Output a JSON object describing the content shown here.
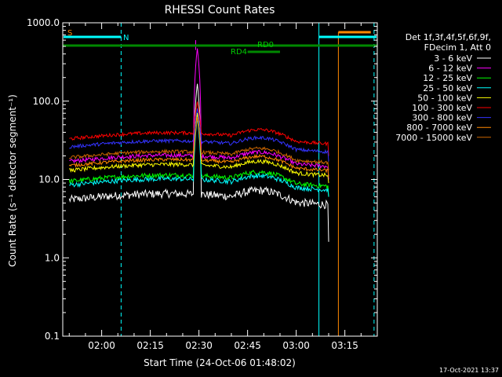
{
  "chart_data": {
    "type": "line",
    "title": "RHESSI Count Rates",
    "xlabel": "Start Time (24-Oct-06 01:48:02)",
    "ylabel": "Count Rate (s⁻¹ detector segment⁻¹)",
    "yscale": "log",
    "ylim": [
      0.1,
      1000
    ],
    "xlim": [
      "01:48",
      "03:25"
    ],
    "x_ticks": [
      "02:00",
      "02:15",
      "02:30",
      "02:45",
      "03:00",
      "03:15"
    ],
    "y_ticks": [
      "0.1",
      "1.0",
      "10.0",
      "100.0",
      "1000.0"
    ],
    "footer": "17-Oct-2021 13:37",
    "legend": {
      "placement": "right",
      "header_line1": "Det 1f,3f,4f,5f,6f,9f,",
      "header_line2": "FDecim 1, Att 0"
    },
    "series": [
      {
        "name": "3 - 6 keV",
        "color": "#ffffff",
        "base": 5.5,
        "noise": 0.12,
        "peak": 160,
        "end_drop": 1.6
      },
      {
        "name": "6 - 12 keV",
        "color": "#ff00ff",
        "base": 17,
        "noise": 0.06,
        "peak": 450,
        "end_drop": 10
      },
      {
        "name": "12 - 25 keV",
        "color": "#00ff00",
        "base": 9.5,
        "noise": 0.07,
        "peak": 60,
        "end_drop": 6
      },
      {
        "name": "25 - 50 keV",
        "color": "#00ffff",
        "base": 8.5,
        "noise": 0.07,
        "peak": 50,
        "end_drop": 6
      },
      {
        "name": "50 - 100 keV",
        "color": "#ffff00",
        "base": 13,
        "noise": 0.06,
        "peak": 55,
        "end_drop": 9
      },
      {
        "name": "100 - 300 keV",
        "color": "#ff0000",
        "base": 33,
        "noise": 0.05,
        "peak": 60,
        "end_drop": 20
      },
      {
        "name": "300 - 800 keV",
        "color": "#3333ff",
        "base": 26,
        "noise": 0.05,
        "peak": 50,
        "end_drop": 17
      },
      {
        "name": "800 - 7000 keV",
        "color": "#ff8800",
        "base": 15,
        "noise": 0.05,
        "peak": 45,
        "end_drop": 11
      },
      {
        "name": "7000 - 15000 keV",
        "color": "#cc6600",
        "base": 19,
        "noise": 0.05,
        "peak": 40,
        "end_drop": 13
      }
    ],
    "annotations": {
      "S_label": "S",
      "N_label": "N",
      "RD0_label": "RD0",
      "RD4_label": "RD4"
    },
    "markers": {
      "cyan_solid_times": [
        "01:48",
        "03:07"
      ],
      "cyan_dashed_times": [
        "02:06",
        "03:24"
      ],
      "orange_line_time": "03:13",
      "flare_peak_time": "02:29"
    }
  }
}
